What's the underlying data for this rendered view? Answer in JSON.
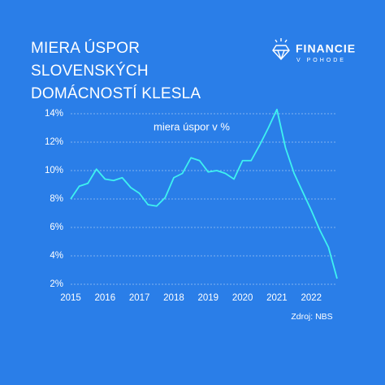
{
  "chart_data": {
    "type": "line",
    "title": "MIERA ÚSPOR SLOVENSKÝCH DOMÁCNOSTÍ KLESLA",
    "annotation": "miera úspor v %",
    "source": "Zdroj: NBS",
    "x": [
      2015,
      2015.25,
      2015.5,
      2015.75,
      2016,
      2016.25,
      2016.5,
      2016.75,
      2017,
      2017.25,
      2017.5,
      2017.75,
      2018,
      2018.25,
      2018.5,
      2018.75,
      2019,
      2019.25,
      2019.5,
      2019.75,
      2020,
      2020.25,
      2020.5,
      2020.75,
      2021,
      2021.25,
      2021.5,
      2021.75,
      2022,
      2022.25,
      2022.5,
      2022.75
    ],
    "series": [
      {
        "color": "#3ef2f0",
        "values": [
          8.0,
          8.9,
          9.1,
          10.1,
          9.4,
          9.3,
          9.5,
          8.8,
          8.4,
          7.6,
          7.5,
          8.1,
          9.5,
          9.8,
          10.9,
          10.7,
          9.9,
          10.0,
          9.8,
          9.4,
          10.7,
          10.7,
          11.8,
          13.0,
          14.3,
          11.6,
          9.8,
          8.5,
          7.2,
          5.8,
          4.6,
          2.4
        ]
      }
    ],
    "xlim": [
      2015,
      2022.75
    ],
    "xticks": [
      2015,
      2016,
      2017,
      2018,
      2019,
      2020,
      2021,
      2022
    ],
    "ylim": [
      2,
      14
    ],
    "yticks": [
      {
        "value": 2,
        "label": "2%"
      },
      {
        "value": 4,
        "label": "4%"
      },
      {
        "value": 6,
        "label": "6%"
      },
      {
        "value": 8,
        "label": "8%"
      },
      {
        "value": 10,
        "label": "10%"
      },
      {
        "value": 12,
        "label": "12%"
      },
      {
        "value": 14,
        "label": "14%"
      }
    ],
    "grid": true
  },
  "logo": {
    "name": "FINANCIE",
    "tagline": "V POHODE"
  }
}
